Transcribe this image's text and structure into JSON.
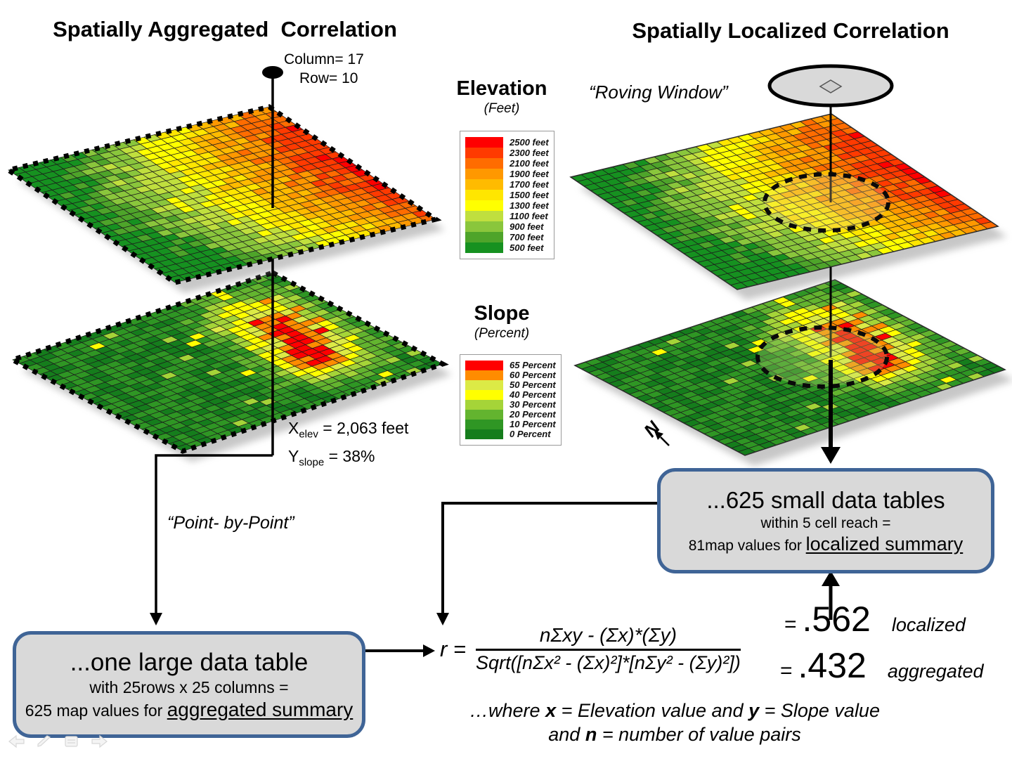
{
  "titles": {
    "left": "Spatially Aggregated  Correlation",
    "right": "Spatially Localized Correlation"
  },
  "left_pin": {
    "column_label": "Column= 17",
    "row_label": "Row= 10",
    "point_label": "“Point- by-Point”"
  },
  "sample": {
    "x_main": "X",
    "x_sub": "elev",
    "x_rest": " = 2,063 feet",
    "y_main": "Y",
    "y_sub": "slope",
    "y_rest": " = 38%"
  },
  "roving_window_label": "“Roving Window”",
  "north_label": "N",
  "legends": {
    "elevation": {
      "title": "Elevation",
      "subtitle": "(Feet)",
      "band_h": 15,
      "entries": [
        {
          "label": "2500 feet",
          "color": "#ff0000"
        },
        {
          "label": "2300 feet",
          "color": "#ff3a00"
        },
        {
          "label": "2100 feet",
          "color": "#ff6c00"
        },
        {
          "label": "1900 feet",
          "color": "#ff9800"
        },
        {
          "label": "1700 feet",
          "color": "#ffbb00"
        },
        {
          "label": "1500 feet",
          "color": "#ffe600"
        },
        {
          "label": "1300 feet",
          "color": "#ffff00"
        },
        {
          "label": "1100 feet",
          "color": "#c0df3e"
        },
        {
          "label": "900 feet",
          "color": "#8ac63c"
        },
        {
          "label": "700 feet",
          "color": "#4ea42a"
        },
        {
          "label": "500 feet",
          "color": "#169120"
        }
      ]
    },
    "slope": {
      "title": "Slope",
      "subtitle": "(Percent)",
      "band_h": 14,
      "entries": [
        {
          "label": "65 Percent",
          "color": "#ff0000"
        },
        {
          "label": "60 Percent",
          "color": "#ff8c00"
        },
        {
          "label": "50 Percent",
          "color": "#dcea46"
        },
        {
          "label": "40 Percent",
          "color": "#ffff00"
        },
        {
          "label": "30 Percent",
          "color": "#a5d438"
        },
        {
          "label": "20 Percent",
          "color": "#63b42f"
        },
        {
          "label": "10 Percent",
          "color": "#2f9624"
        },
        {
          "label": "0 Percent",
          "color": "#157d1c"
        }
      ]
    }
  },
  "boxes": {
    "aggregated": {
      "line1": "...one large data table",
      "line2": "with 25rows x 25 columns =",
      "line3_prefix": "625 map values for ",
      "line3_underline": "aggregated summary"
    },
    "localized": {
      "line1": "...625 small data tables",
      "line2": "within 5 cell reach =",
      "line3_prefix": "81map values for ",
      "line3_underline": "localized summary"
    }
  },
  "formula": {
    "lhs": "r =",
    "numerator": "nΣxy - (Σx)*(Σy)",
    "denominator": "Sqrt([nΣx² - (Σx)²]*[nΣy² - (Σy)²])",
    "result_localized": {
      "eq": "=",
      "value": ".562",
      "label": "localized"
    },
    "result_aggregated": {
      "eq": "=",
      "value": ".432",
      "label": "aggregated"
    }
  },
  "note": {
    "seg1": "…where ",
    "x": "x",
    "seg2": " = Elevation value and ",
    "y": "y",
    "seg3": " = Slope value",
    "seg4": "and ",
    "n": "n",
    "seg5": " = number of value pairs"
  },
  "maps": {
    "rows": 25,
    "cols": 25
  },
  "colors": {
    "box_fill": "#d9d9d9",
    "box_border": "#3f6496"
  },
  "nav_icons": [
    "back",
    "pen",
    "slides",
    "forward"
  ]
}
